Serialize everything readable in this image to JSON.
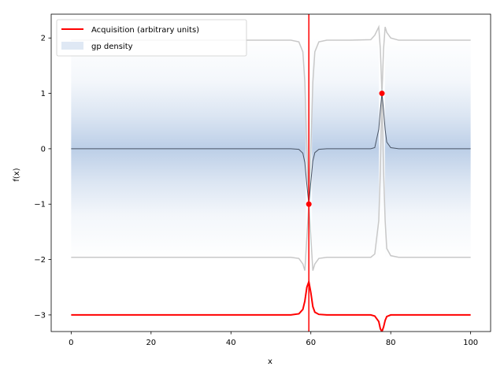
{
  "chart_data": {
    "type": "line",
    "title": "",
    "xlabel": "x",
    "ylabel": "f(x)",
    "xlim": [
      -5,
      105
    ],
    "ylim": [
      -3.3,
      2.43
    ],
    "xticks": [
      0,
      20,
      40,
      60,
      80,
      100
    ],
    "yticks": [
      -3,
      -2,
      -1,
      0,
      1,
      2
    ],
    "ytick_labels": [
      "−3",
      "−2",
      "−1",
      "0",
      "1",
      "2"
    ],
    "grid": false,
    "legend_position": "top-left",
    "observations": {
      "x": [
        59.5,
        77.8
      ],
      "y": [
        -1.0,
        1.0
      ],
      "color": "#ff0000"
    },
    "vertical_line": {
      "x": 59.5,
      "color": "#ff0000"
    },
    "gp_mean": {
      "x": [
        0,
        10,
        20,
        30,
        40,
        50,
        55,
        57,
        58,
        58.5,
        59,
        59.5,
        60,
        60.5,
        61,
        62,
        64,
        70,
        75,
        76,
        77,
        77.4,
        77.8,
        78.2,
        78.6,
        79,
        80,
        82,
        90,
        100
      ],
      "y": [
        0,
        0,
        0,
        0,
        0,
        0,
        0,
        -0.01,
        -0.08,
        -0.25,
        -0.65,
        -1.0,
        -0.6,
        -0.22,
        -0.07,
        -0.01,
        0,
        0,
        0,
        0.02,
        0.35,
        0.7,
        1.0,
        0.7,
        0.35,
        0.12,
        0.02,
        0,
        0,
        0
      ],
      "color": "#4a5566"
    },
    "gp_upper": {
      "x": [
        0,
        10,
        20,
        30,
        40,
        50,
        55,
        57,
        58,
        58.5,
        59,
        59.5,
        60,
        60.5,
        61,
        62,
        64,
        70,
        75,
        76,
        77,
        77.4,
        77.8,
        78.2,
        78.6,
        79,
        80,
        82,
        90,
        100
      ],
      "y": [
        1.96,
        1.96,
        1.96,
        1.96,
        1.96,
        1.96,
        1.96,
        1.93,
        1.75,
        1.2,
        0.0,
        -1.0,
        0.0,
        1.2,
        1.75,
        1.93,
        1.96,
        1.96,
        1.97,
        2.05,
        2.2,
        1.8,
        1.0,
        1.8,
        2.2,
        2.1,
        2.0,
        1.96,
        1.96,
        1.96
      ],
      "color": "#c8c8c8"
    },
    "gp_lower": {
      "x": [
        0,
        10,
        20,
        30,
        40,
        50,
        55,
        57,
        58,
        58.5,
        59,
        59.5,
        60,
        60.5,
        61,
        62,
        64,
        70,
        75,
        76,
        77,
        77.4,
        77.8,
        78.2,
        78.6,
        79,
        80,
        82,
        90,
        100
      ],
      "y": [
        -1.96,
        -1.96,
        -1.96,
        -1.96,
        -1.96,
        -1.96,
        -1.96,
        -1.98,
        -2.08,
        -2.2,
        -1.6,
        -1.0,
        -1.6,
        -2.2,
        -2.08,
        -1.98,
        -1.96,
        -1.96,
        -1.96,
        -1.9,
        -1.3,
        -0.4,
        1.0,
        -0.4,
        -1.3,
        -1.8,
        -1.93,
        -1.96,
        -1.96,
        -1.96
      ],
      "color": "#c8c8c8"
    },
    "acquisition": {
      "x": [
        0,
        10,
        20,
        30,
        40,
        50,
        55,
        57,
        58,
        58.5,
        59,
        59.5,
        60,
        60.5,
        61,
        62,
        64,
        70,
        75,
        76,
        77,
        77.4,
        77.8,
        78.2,
        78.6,
        79,
        80,
        82,
        90,
        100
      ],
      "y": [
        -3.0,
        -3.0,
        -3.0,
        -3.0,
        -3.0,
        -3.0,
        -3.0,
        -2.98,
        -2.9,
        -2.75,
        -2.5,
        -2.4,
        -2.6,
        -2.85,
        -2.95,
        -2.99,
        -3.0,
        -3.0,
        -3.0,
        -3.02,
        -3.12,
        -3.25,
        -3.3,
        -3.22,
        -3.1,
        -3.03,
        -3.0,
        -3.0,
        -3.0,
        -3.0
      ],
      "color": "#ff0000"
    },
    "legend": [
      {
        "label": "Acquisition (arbitrary units)",
        "kind": "line",
        "color": "#ff0000"
      },
      {
        "label": "gp density",
        "kind": "patch",
        "color": "#dfe8f4"
      }
    ],
    "density_color": "#b0c6e3"
  }
}
